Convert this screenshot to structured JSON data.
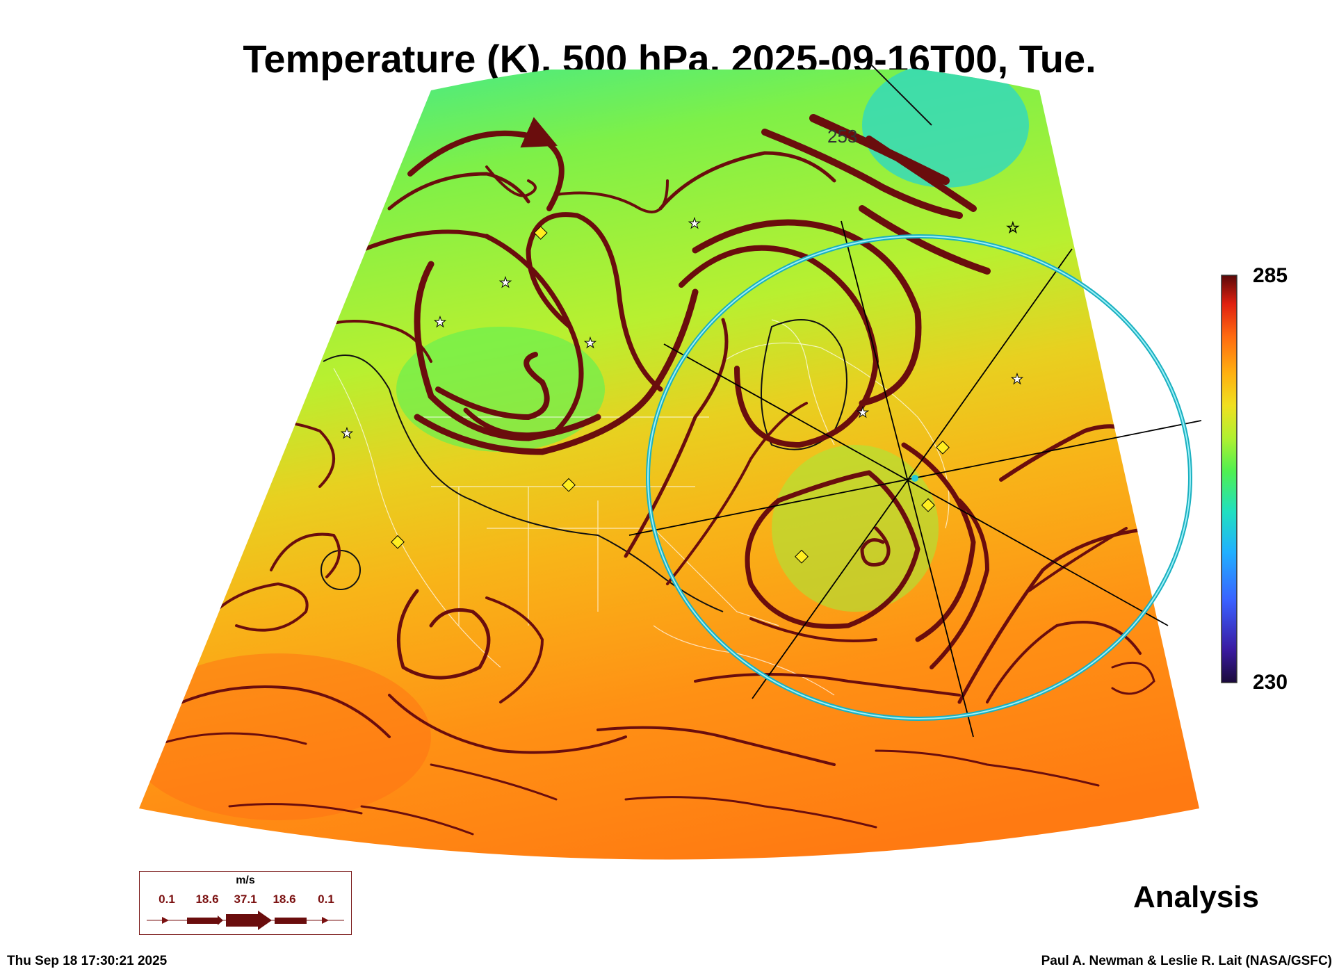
{
  "title": "Temperature (K), 500 hPa, 2025-09-16T00, Tue.",
  "colorbar": {
    "max_label": "285",
    "min_label": "230",
    "colors": [
      "#1a0a3a",
      "#3a1aa0",
      "#3a60ff",
      "#20b0ff",
      "#20e0c0",
      "#50f050",
      "#b0f030",
      "#f0e020",
      "#ffb010",
      "#ff6a10",
      "#e02010",
      "#5a0808"
    ]
  },
  "map": {
    "temperature_field_colors": {
      "cold": "#30e0a0",
      "mid": "#90f040",
      "warm": "#f0c020",
      "hot": "#ff7a10"
    },
    "streamline_color": "#6a0d0d",
    "label_253": "253"
  },
  "wind_legend": {
    "unit": "m/s",
    "values": [
      "0.1",
      "18.6",
      "37.1",
      "18.6",
      "0.1"
    ]
  },
  "annotation": "Analysis",
  "timestamp": "Thu Sep 18 17:30:21 2025",
  "credit": "Paul A. Newman & Leslie R. Lait (NASA/GSFC)"
}
